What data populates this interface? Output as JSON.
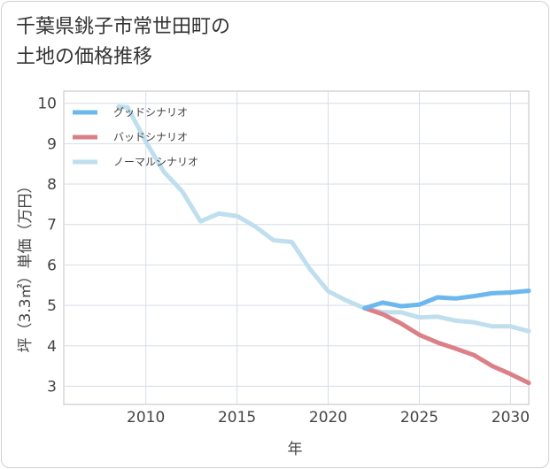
{
  "title": {
    "line1": "千葉県銚子市常世田町の",
    "line2": "土地の価格推移"
  },
  "chart_data": {
    "type": "line",
    "xlabel": "年",
    "ylabel": "坪（3.3㎡）単価（万円）",
    "xlim": [
      2005.5,
      2031
    ],
    "ylim": [
      2.55,
      10.3
    ],
    "xticks": [
      2010,
      2015,
      2020,
      2025,
      2030
    ],
    "yticks": [
      3,
      4,
      5,
      6,
      7,
      8,
      9,
      10
    ],
    "grid": true,
    "legend_position": "top-left",
    "series": [
      {
        "name": "グッドシナリオ",
        "color": "#6cb8ee",
        "x": [
          2022,
          2023,
          2024,
          2025,
          2026,
          2027,
          2028,
          2029,
          2030,
          2031
        ],
        "y": [
          4.93,
          5.07,
          4.98,
          5.02,
          5.2,
          5.17,
          5.23,
          5.3,
          5.32,
          5.36
        ]
      },
      {
        "name": "バッドシナリオ",
        "color": "#db8087",
        "x": [
          2022,
          2023,
          2024,
          2025,
          2026,
          2027,
          2028,
          2029,
          2030,
          2031
        ],
        "y": [
          4.93,
          4.78,
          4.55,
          4.27,
          4.08,
          3.93,
          3.77,
          3.5,
          3.3,
          3.08
        ]
      },
      {
        "name": "ノーマルシナリオ",
        "color": "#bfdfee",
        "x": [
          2008.5,
          2009,
          2010,
          2011,
          2012,
          2013,
          2014,
          2015,
          2016,
          2017,
          2018,
          2019,
          2020,
          2021,
          2022,
          2023,
          2024,
          2025,
          2026,
          2027,
          2028,
          2029,
          2030,
          2031
        ],
        "y": [
          9.92,
          9.9,
          9.05,
          8.3,
          7.82,
          7.08,
          7.27,
          7.21,
          6.95,
          6.61,
          6.57,
          5.9,
          5.35,
          5.12,
          4.93,
          4.83,
          4.83,
          4.7,
          4.72,
          4.62,
          4.58,
          4.48,
          4.48,
          4.36
        ]
      }
    ]
  }
}
